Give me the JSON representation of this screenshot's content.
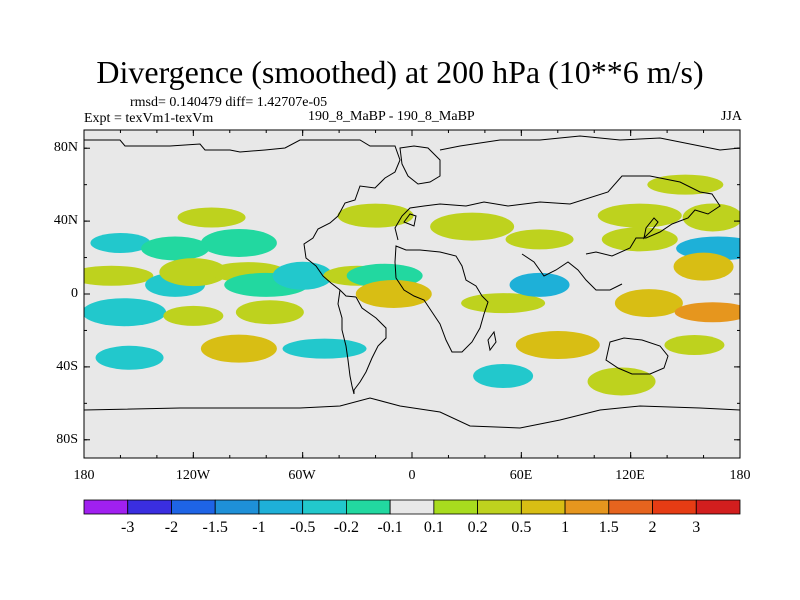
{
  "title": "Divergence (smoothed) at 200 hPa (10**6 m/s)",
  "stats": "rmsd= 0.140479 diff= 1.42707e-05",
  "expt": "Expt = texVm1-texVm",
  "expt_name": "190_8_MaBP - 190_8_MaBP",
  "season": "JJA",
  "axes": {
    "lat_ticks": [
      "80N",
      "40N",
      "0",
      "40S",
      "80S"
    ],
    "lon_ticks": [
      "180",
      "120W",
      "60W",
      "0",
      "60E",
      "120E",
      "180"
    ]
  },
  "map_data": {
    "type": "filled-contour",
    "projection": "cylindrical-equidistant",
    "lon_range": [
      -180,
      180
    ],
    "lat_range": [
      -90,
      90
    ],
    "variable": "divergence difference at 200 hPa",
    "units": "10**6 m/s",
    "field_regions": [
      {
        "lon": -160,
        "lat": 28,
        "value": -0.3
      },
      {
        "lon": -130,
        "lat": 25,
        "value": -0.2
      },
      {
        "lon": -95,
        "lat": 28,
        "value": -0.2
      },
      {
        "lon": -165,
        "lat": 10,
        "value": 0.2
      },
      {
        "lon": -130,
        "lat": 5,
        "value": -0.3
      },
      {
        "lon": -120,
        "lat": 12,
        "value": 0.3
      },
      {
        "lon": -90,
        "lat": 12,
        "value": 0.25
      },
      {
        "lon": -80,
        "lat": 5,
        "value": -0.2
      },
      {
        "lon": -60,
        "lat": 10,
        "value": -0.3
      },
      {
        "lon": -30,
        "lat": 10,
        "value": 0.3
      },
      {
        "lon": -15,
        "lat": 10,
        "value": -0.2
      },
      {
        "lon": -158,
        "lat": -10,
        "value": -0.4
      },
      {
        "lon": -120,
        "lat": -12,
        "value": 0.4
      },
      {
        "lon": -78,
        "lat": -10,
        "value": 0.3
      },
      {
        "lon": -10,
        "lat": 0,
        "value": 0.6
      },
      {
        "lon": 50,
        "lat": -5,
        "value": 0.3
      },
      {
        "lon": 70,
        "lat": 5,
        "value": -0.6
      },
      {
        "lon": 130,
        "lat": -5,
        "value": 0.6
      },
      {
        "lon": 165,
        "lat": -10,
        "value": 1.2
      },
      {
        "lon": 168,
        "lat": 25,
        "value": -0.8
      },
      {
        "lon": 160,
        "lat": 15,
        "value": 0.7
      },
      {
        "lon": 70,
        "lat": 30,
        "value": 0.4
      },
      {
        "lon": 125,
        "lat": 30,
        "value": 0.2
      },
      {
        "lon": 80,
        "lat": -28,
        "value": 0.5
      },
      {
        "lon": 155,
        "lat": -28,
        "value": 0.2
      },
      {
        "lon": -155,
        "lat": -35,
        "value": -0.3
      },
      {
        "lon": -95,
        "lat": -30,
        "value": 0.5
      },
      {
        "lon": -48,
        "lat": -30,
        "value": -0.3
      },
      {
        "lon": 50,
        "lat": -45,
        "value": -0.3
      },
      {
        "lon": 115,
        "lat": -48,
        "value": 0.2
      },
      {
        "lon": 150,
        "lat": 60,
        "value": 0.3
      },
      {
        "lon": 125,
        "lat": 43,
        "value": 0.3
      },
      {
        "lon": 165,
        "lat": 42,
        "value": 0.2
      },
      {
        "lon": -110,
        "lat": 42,
        "value": 0.2
      },
      {
        "lon": -20,
        "lat": 43,
        "value": 0.2
      },
      {
        "lon": 33,
        "lat": 37,
        "value": 0.2
      }
    ]
  },
  "colorbar": {
    "labels": [
      "-3",
      "-2",
      "-1.5",
      "-1",
      "-0.5",
      "-0.2",
      "-0.1",
      "0.1",
      "0.2",
      "0.5",
      "1",
      "1.5",
      "2",
      "3"
    ],
    "colors": [
      "#a020f0",
      "#3a2ee0",
      "#1e64e6",
      "#1e90d8",
      "#1eb0d8",
      "#22c8cc",
      "#22d8a0",
      "#e8e8e8",
      "#a8dc1e",
      "#bed21e",
      "#d8be14",
      "#e6961e",
      "#e6641e",
      "#e63c14",
      "#d21e1e"
    ]
  }
}
